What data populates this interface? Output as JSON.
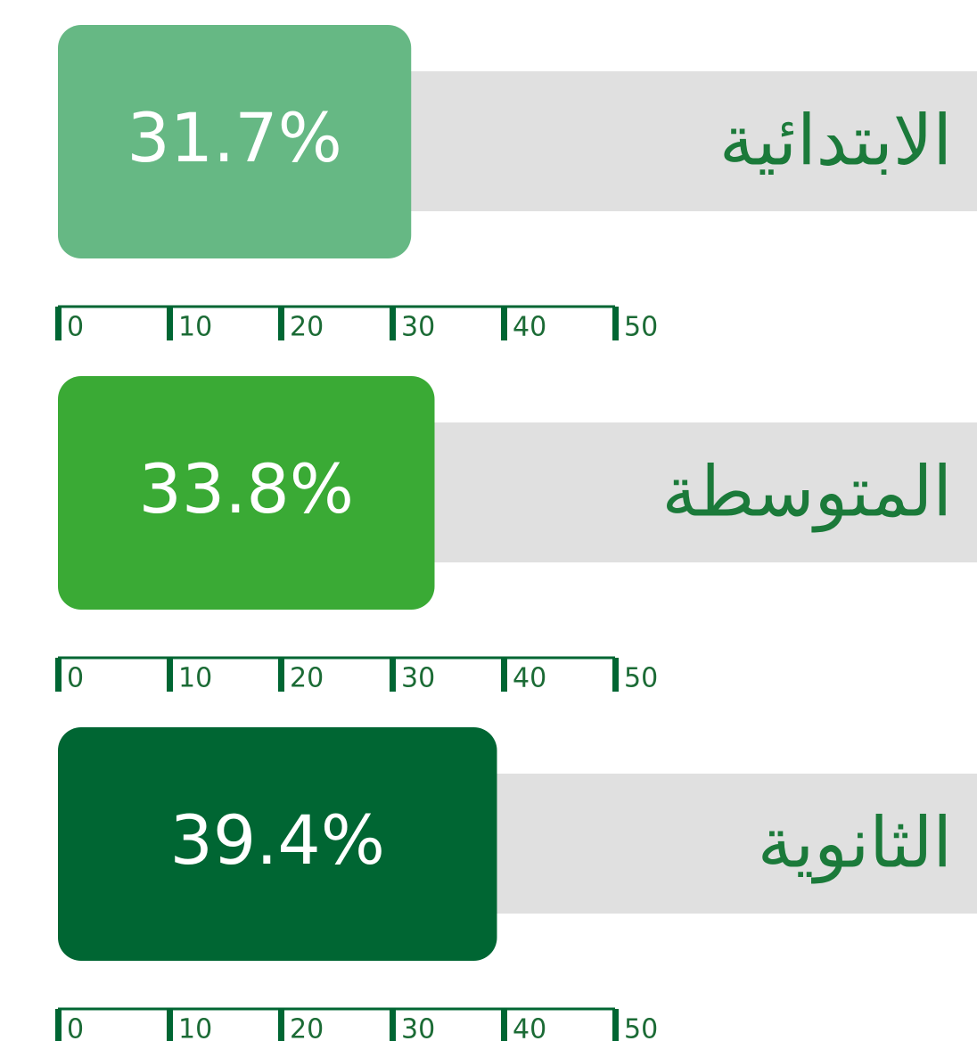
{
  "chart_data": {
    "type": "bar",
    "orientation": "horizontal",
    "categories": [
      "الابتدائية",
      "المتوسطة",
      "الثانوية"
    ],
    "values": [
      31.7,
      33.8,
      39.4
    ],
    "value_labels": [
      "31.7%",
      "33.8%",
      "39.4%"
    ],
    "colors": [
      "#66b884",
      "#3aaa35",
      "#006633"
    ],
    "xlim": [
      0,
      50
    ],
    "xticks": [
      0,
      10,
      20,
      30,
      40,
      50
    ]
  }
}
